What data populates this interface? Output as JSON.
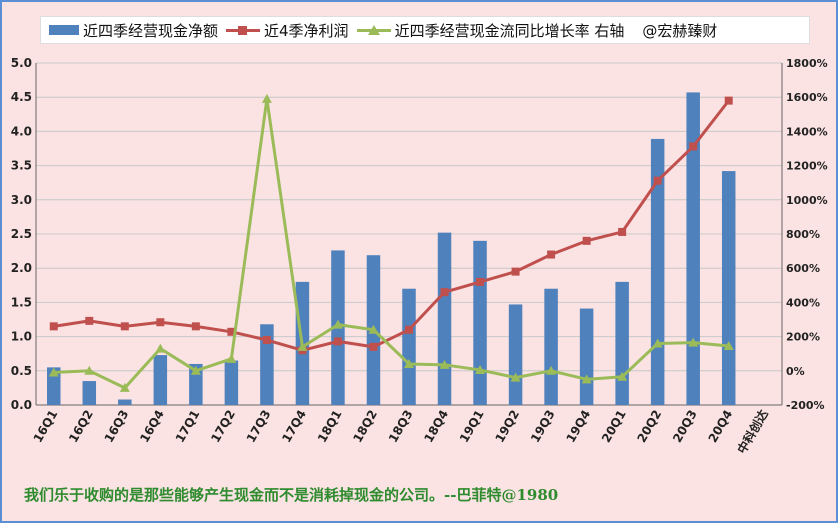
{
  "chart_data": {
    "type": "bar+line",
    "watermark": "@宏赫臻财",
    "footer": "我们乐于收购的是那些能够产生现金而不是消耗掉现金的公司。--巴菲特@1980",
    "categories": [
      "16Q1",
      "16Q2",
      "16Q3",
      "16Q4",
      "17Q1",
      "17Q2",
      "17Q3",
      "17Q4",
      "18Q1",
      "18Q2",
      "18Q3",
      "18Q4",
      "19Q1",
      "19Q2",
      "19Q3",
      "19Q4",
      "20Q1",
      "20Q2",
      "20Q3",
      "20Q4",
      "中科创达"
    ],
    "left_axis": {
      "ylim": [
        0,
        5.0
      ],
      "ticks": [
        "0.0",
        "0.5",
        "1.0",
        "1.5",
        "2.0",
        "2.5",
        "3.0",
        "3.5",
        "4.0",
        "4.5",
        "5.0"
      ]
    },
    "right_axis": {
      "ylim": [
        -200,
        1800
      ],
      "ticks": [
        "-200%",
        "0%",
        "200%",
        "400%",
        "600%",
        "800%",
        "1000%",
        "1200%",
        "1400%",
        "1600%",
        "1800%"
      ]
    },
    "series": [
      {
        "name": "近四季经营现金净额",
        "type": "bar",
        "axis": "left",
        "color": "#4f81bd",
        "values": [
          0.55,
          0.35,
          0.08,
          0.73,
          0.6,
          0.65,
          1.18,
          1.8,
          2.26,
          2.19,
          1.7,
          2.52,
          2.4,
          1.47,
          1.7,
          1.41,
          1.8,
          3.89,
          4.57,
          3.42,
          null
        ]
      },
      {
        "name": "近4季净利润",
        "type": "line",
        "axis": "left",
        "color": "#c0504d",
        "marker": "square",
        "values": [
          1.15,
          1.23,
          1.15,
          1.21,
          1.15,
          1.07,
          0.95,
          0.8,
          0.93,
          0.85,
          1.1,
          1.65,
          1.8,
          1.95,
          2.2,
          2.4,
          2.53,
          3.28,
          3.78,
          4.45,
          null
        ]
      },
      {
        "name": "近四季经营现金流同比增长率 右轴",
        "type": "line",
        "axis": "right",
        "color": "#9bbb59",
        "marker": "triangle",
        "values": [
          -10,
          0,
          -100,
          130,
          0,
          70,
          1590,
          140,
          270,
          240,
          40,
          35,
          5,
          -40,
          0,
          -50,
          -35,
          160,
          165,
          145,
          null
        ]
      }
    ]
  }
}
